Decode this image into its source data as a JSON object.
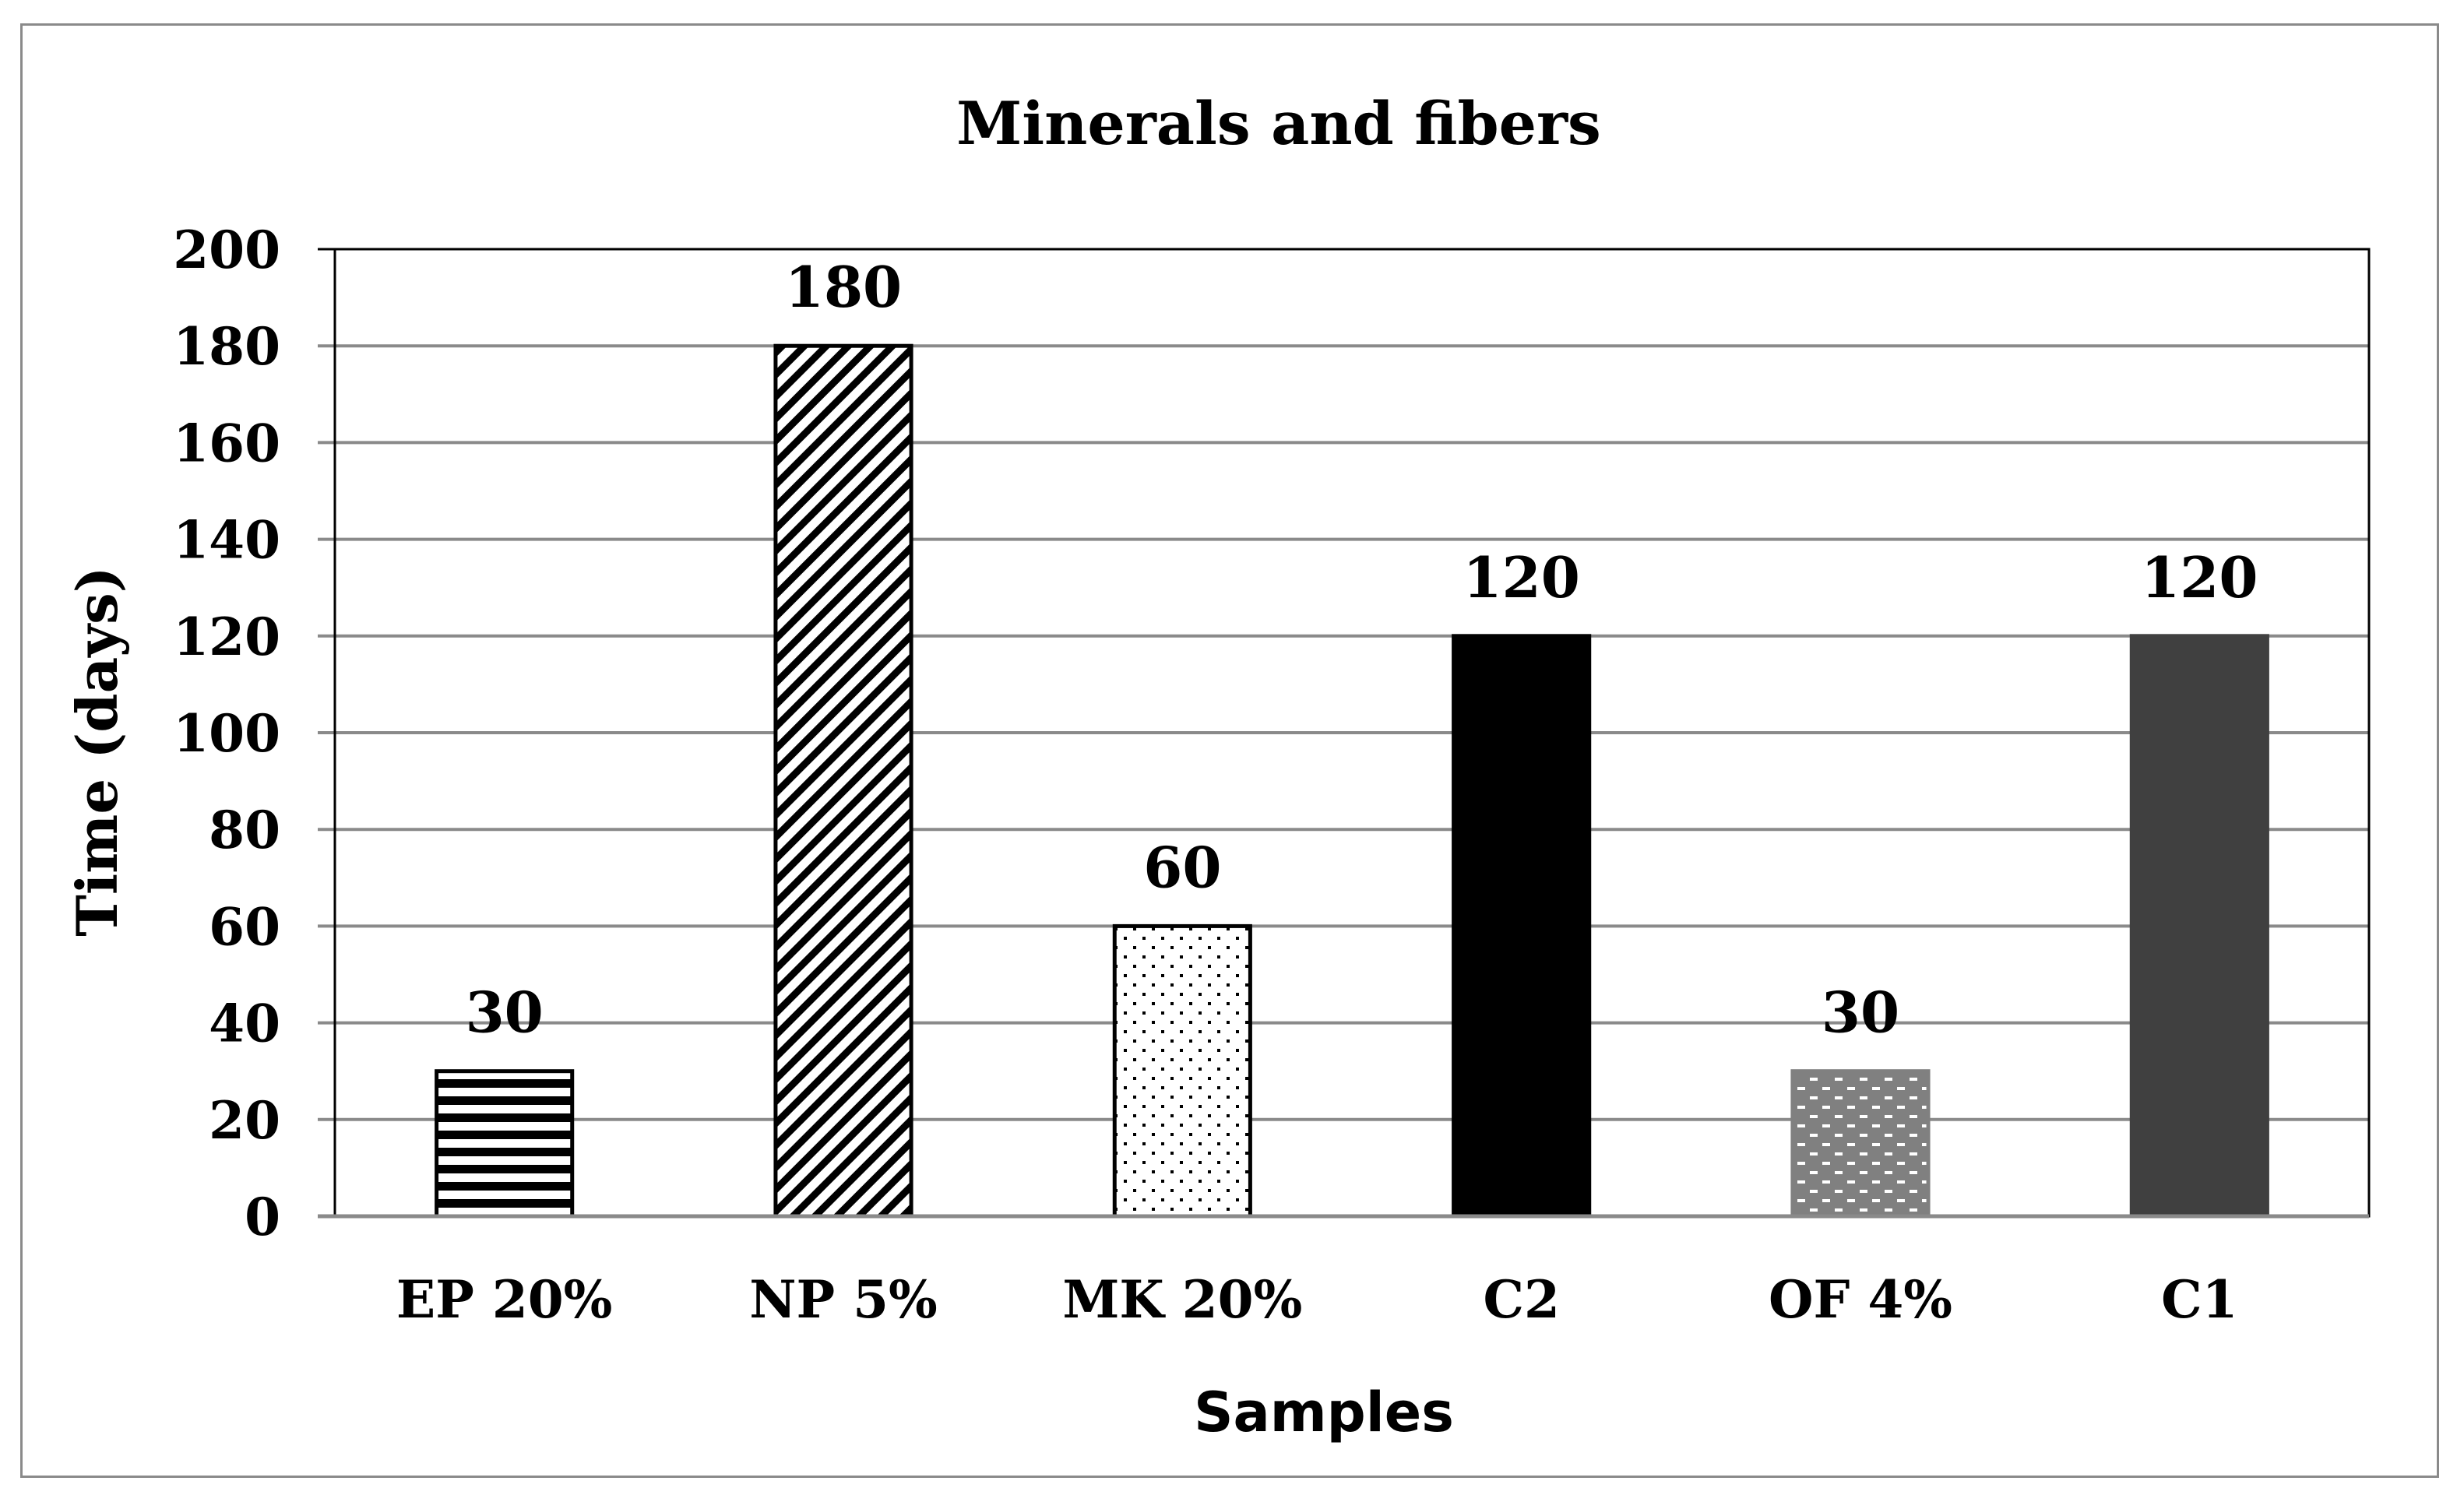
{
  "chart_data": {
    "type": "bar",
    "title": "Minerals and fibers",
    "xlabel": "Samples",
    "ylabel": "Time (days)",
    "ylim": [
      0,
      200
    ],
    "yticks": [
      0,
      20,
      40,
      60,
      80,
      100,
      120,
      140,
      160,
      180,
      200
    ],
    "grid": true,
    "categories": [
      "EP 20%",
      "NP 5%",
      "MK 20%",
      "C2",
      "OF 4%",
      "C1"
    ],
    "values": [
      30,
      180,
      60,
      120,
      30,
      120
    ],
    "data_labels": [
      "30",
      "180",
      "60",
      "120",
      "30",
      "120"
    ],
    "bar_fills": [
      "horizontal-stripes",
      "diagonal-stripes",
      "dots",
      "solid-black",
      "dashed-brick-gray",
      "solid-dark-gray"
    ],
    "colors": {
      "black": "#000000",
      "dark_gray": "#404040",
      "mid_gray": "#808080",
      "grid": "#8a8a8a"
    }
  }
}
